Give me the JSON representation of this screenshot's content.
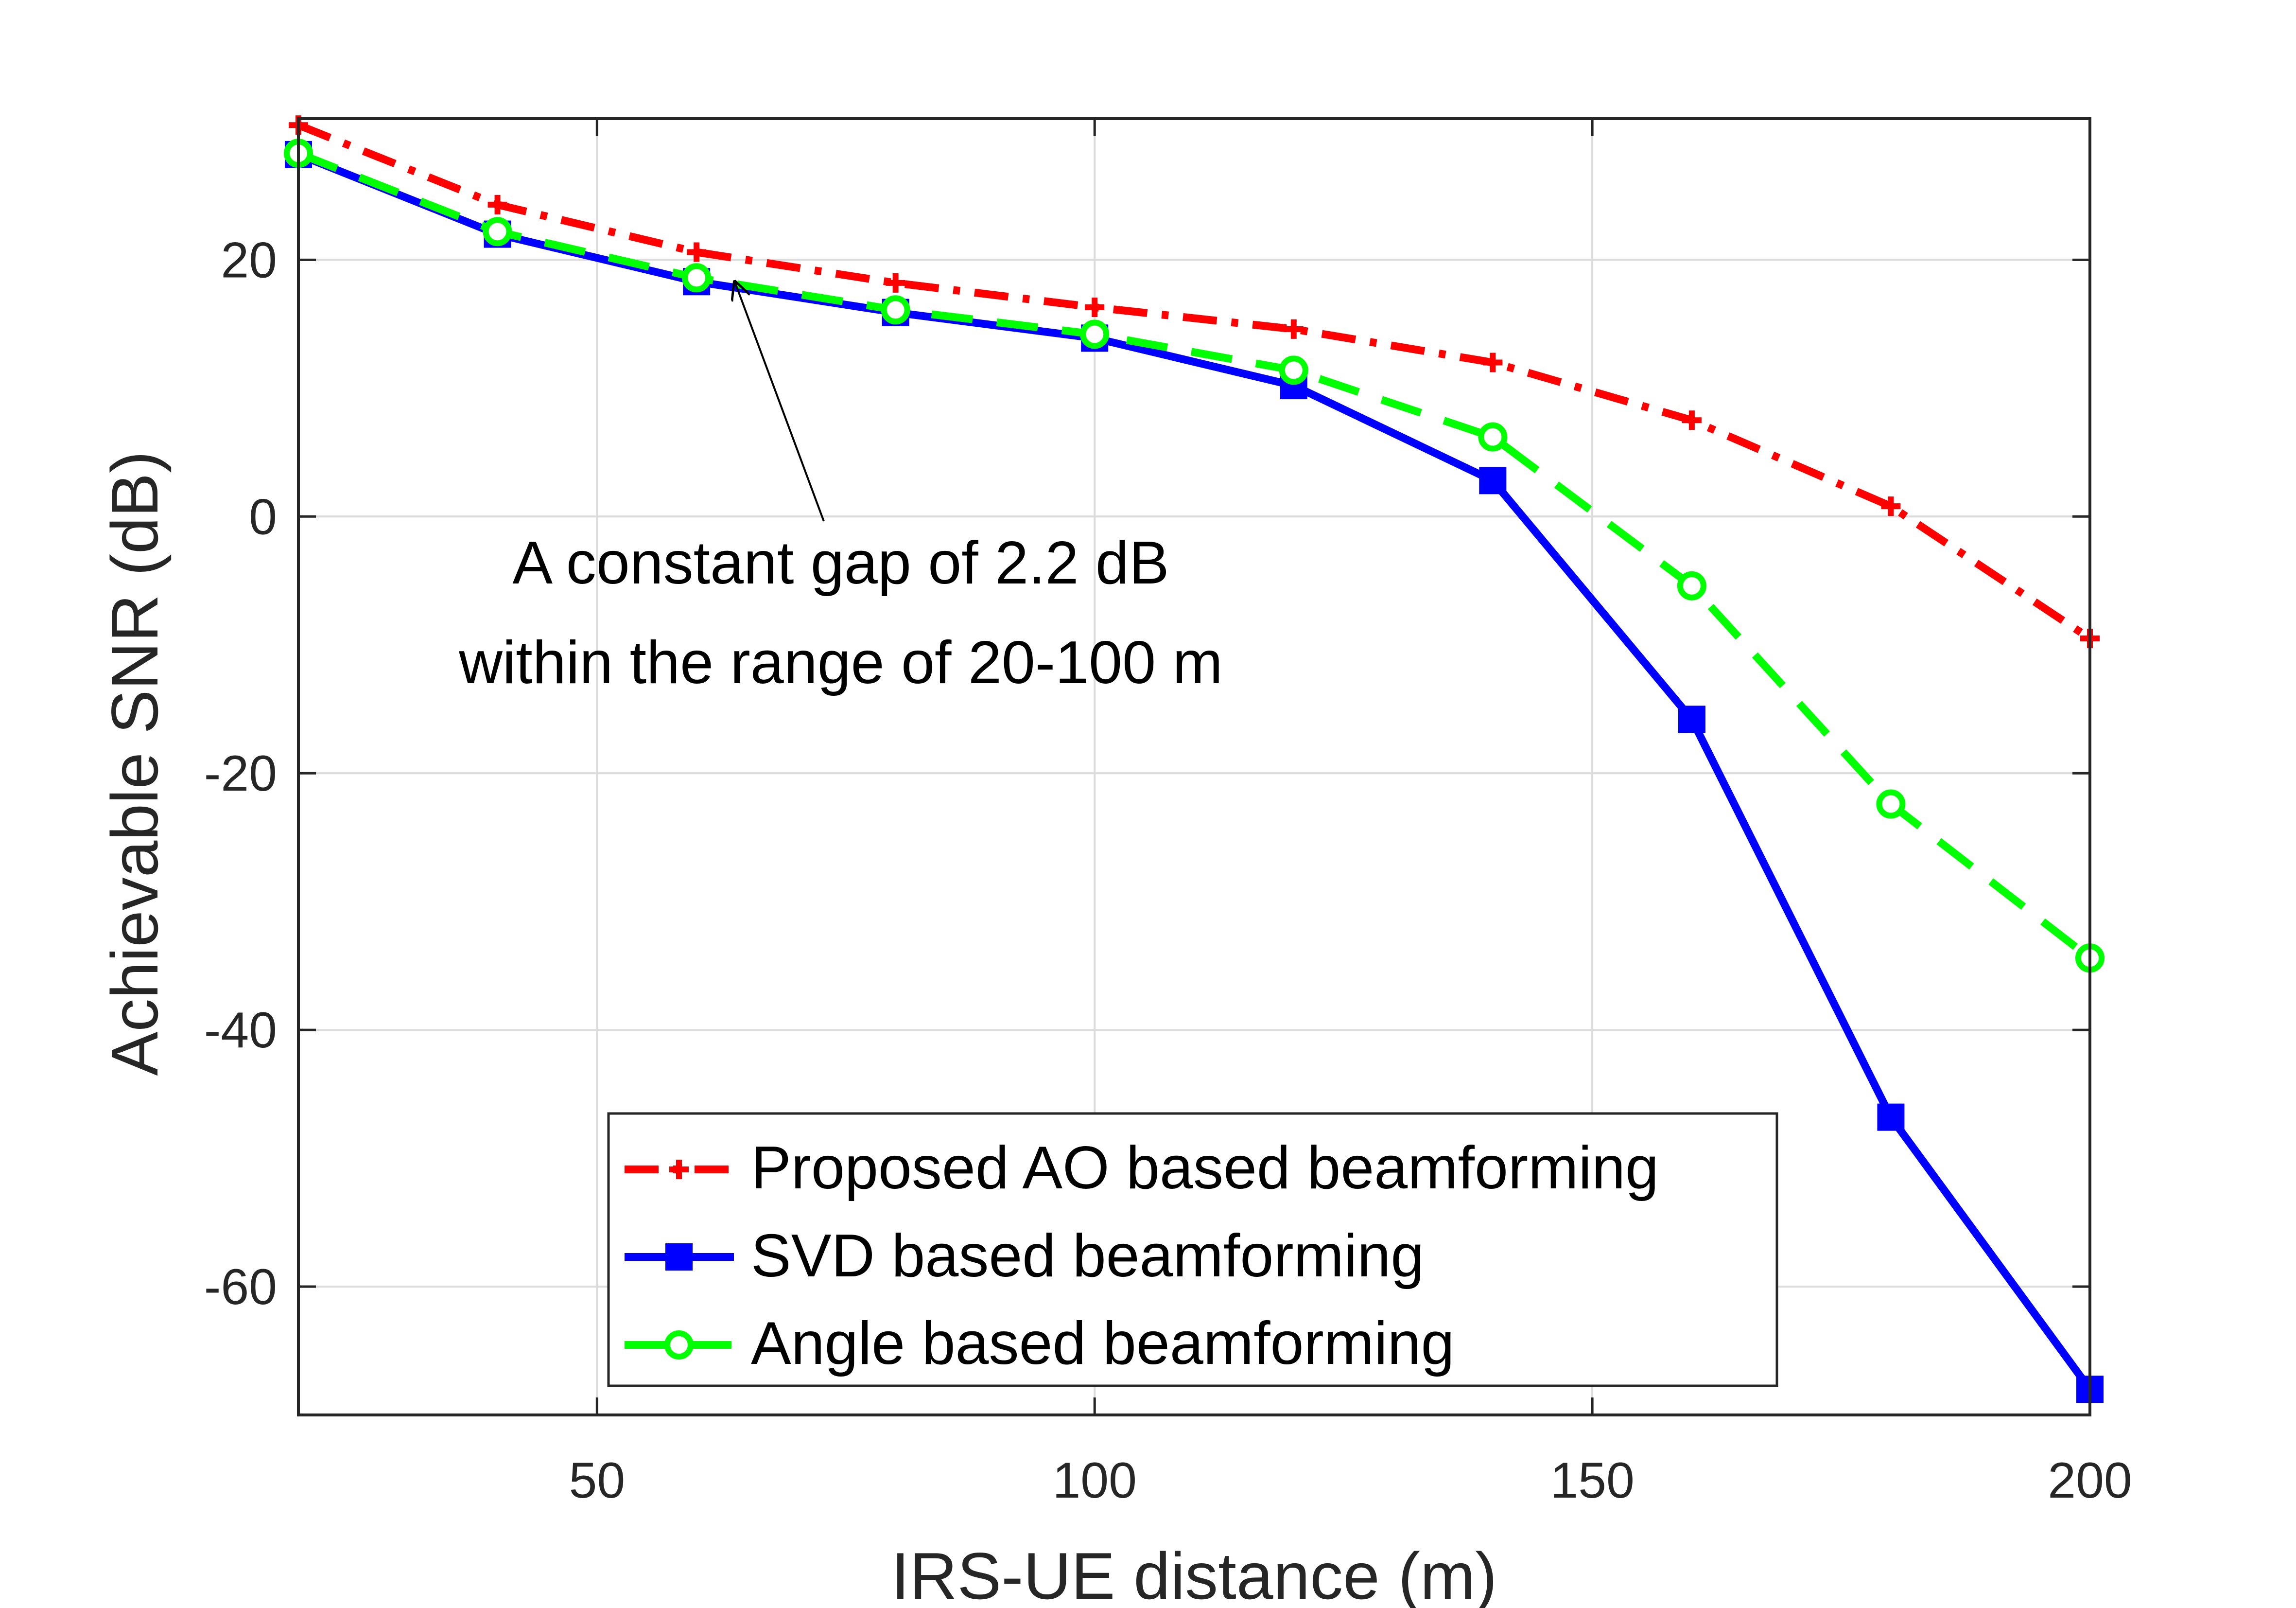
{
  "chart_data": {
    "type": "line",
    "xlabel": "IRS-UE distance (m)",
    "ylabel": "Achievable SNR (dB)",
    "xlim": [
      20,
      200
    ],
    "ylim": [
      -70,
      31
    ],
    "xticks": [
      50,
      100,
      150,
      200
    ],
    "yticks": [
      -60,
      -40,
      -20,
      0,
      20
    ],
    "xtick_labels": [
      "50",
      "100",
      "150",
      "200"
    ],
    "ytick_labels": [
      "-60",
      "-40",
      "-20",
      "0",
      "20"
    ],
    "grid": true,
    "x": [
      20,
      40,
      60,
      80,
      100,
      120,
      140,
      160,
      180,
      200
    ],
    "series": [
      {
        "name": "Proposed AO based beamforming",
        "color": "#ff0000",
        "linestyle": "dashdot",
        "marker": "plus",
        "values": [
          30.5,
          24.3,
          20.6,
          18.2,
          16.3,
          14.6,
          12.0,
          7.5,
          0.8,
          -9.5
        ]
      },
      {
        "name": "SVD based beamforming",
        "color": "#0000ff",
        "linestyle": "solid",
        "marker": "square",
        "values": [
          28.2,
          22.0,
          18.3,
          15.9,
          13.9,
          10.2,
          2.8,
          -15.8,
          -46.8,
          -68.0
        ]
      },
      {
        "name": "Angle based beamforming",
        "color": "#00ff00",
        "linestyle": "dashed",
        "marker": "circle",
        "values": [
          28.3,
          22.2,
          18.6,
          16.1,
          14.2,
          11.4,
          6.2,
          -5.4,
          -22.4,
          -34.4
        ]
      }
    ],
    "annotation": {
      "lines": [
        "A constant gap of 2.2 dB",
        "within the range of 20-100 m"
      ],
      "arrow_target": [
        63,
        18.6
      ]
    },
    "legend": {
      "position": "bottom-right"
    }
  }
}
